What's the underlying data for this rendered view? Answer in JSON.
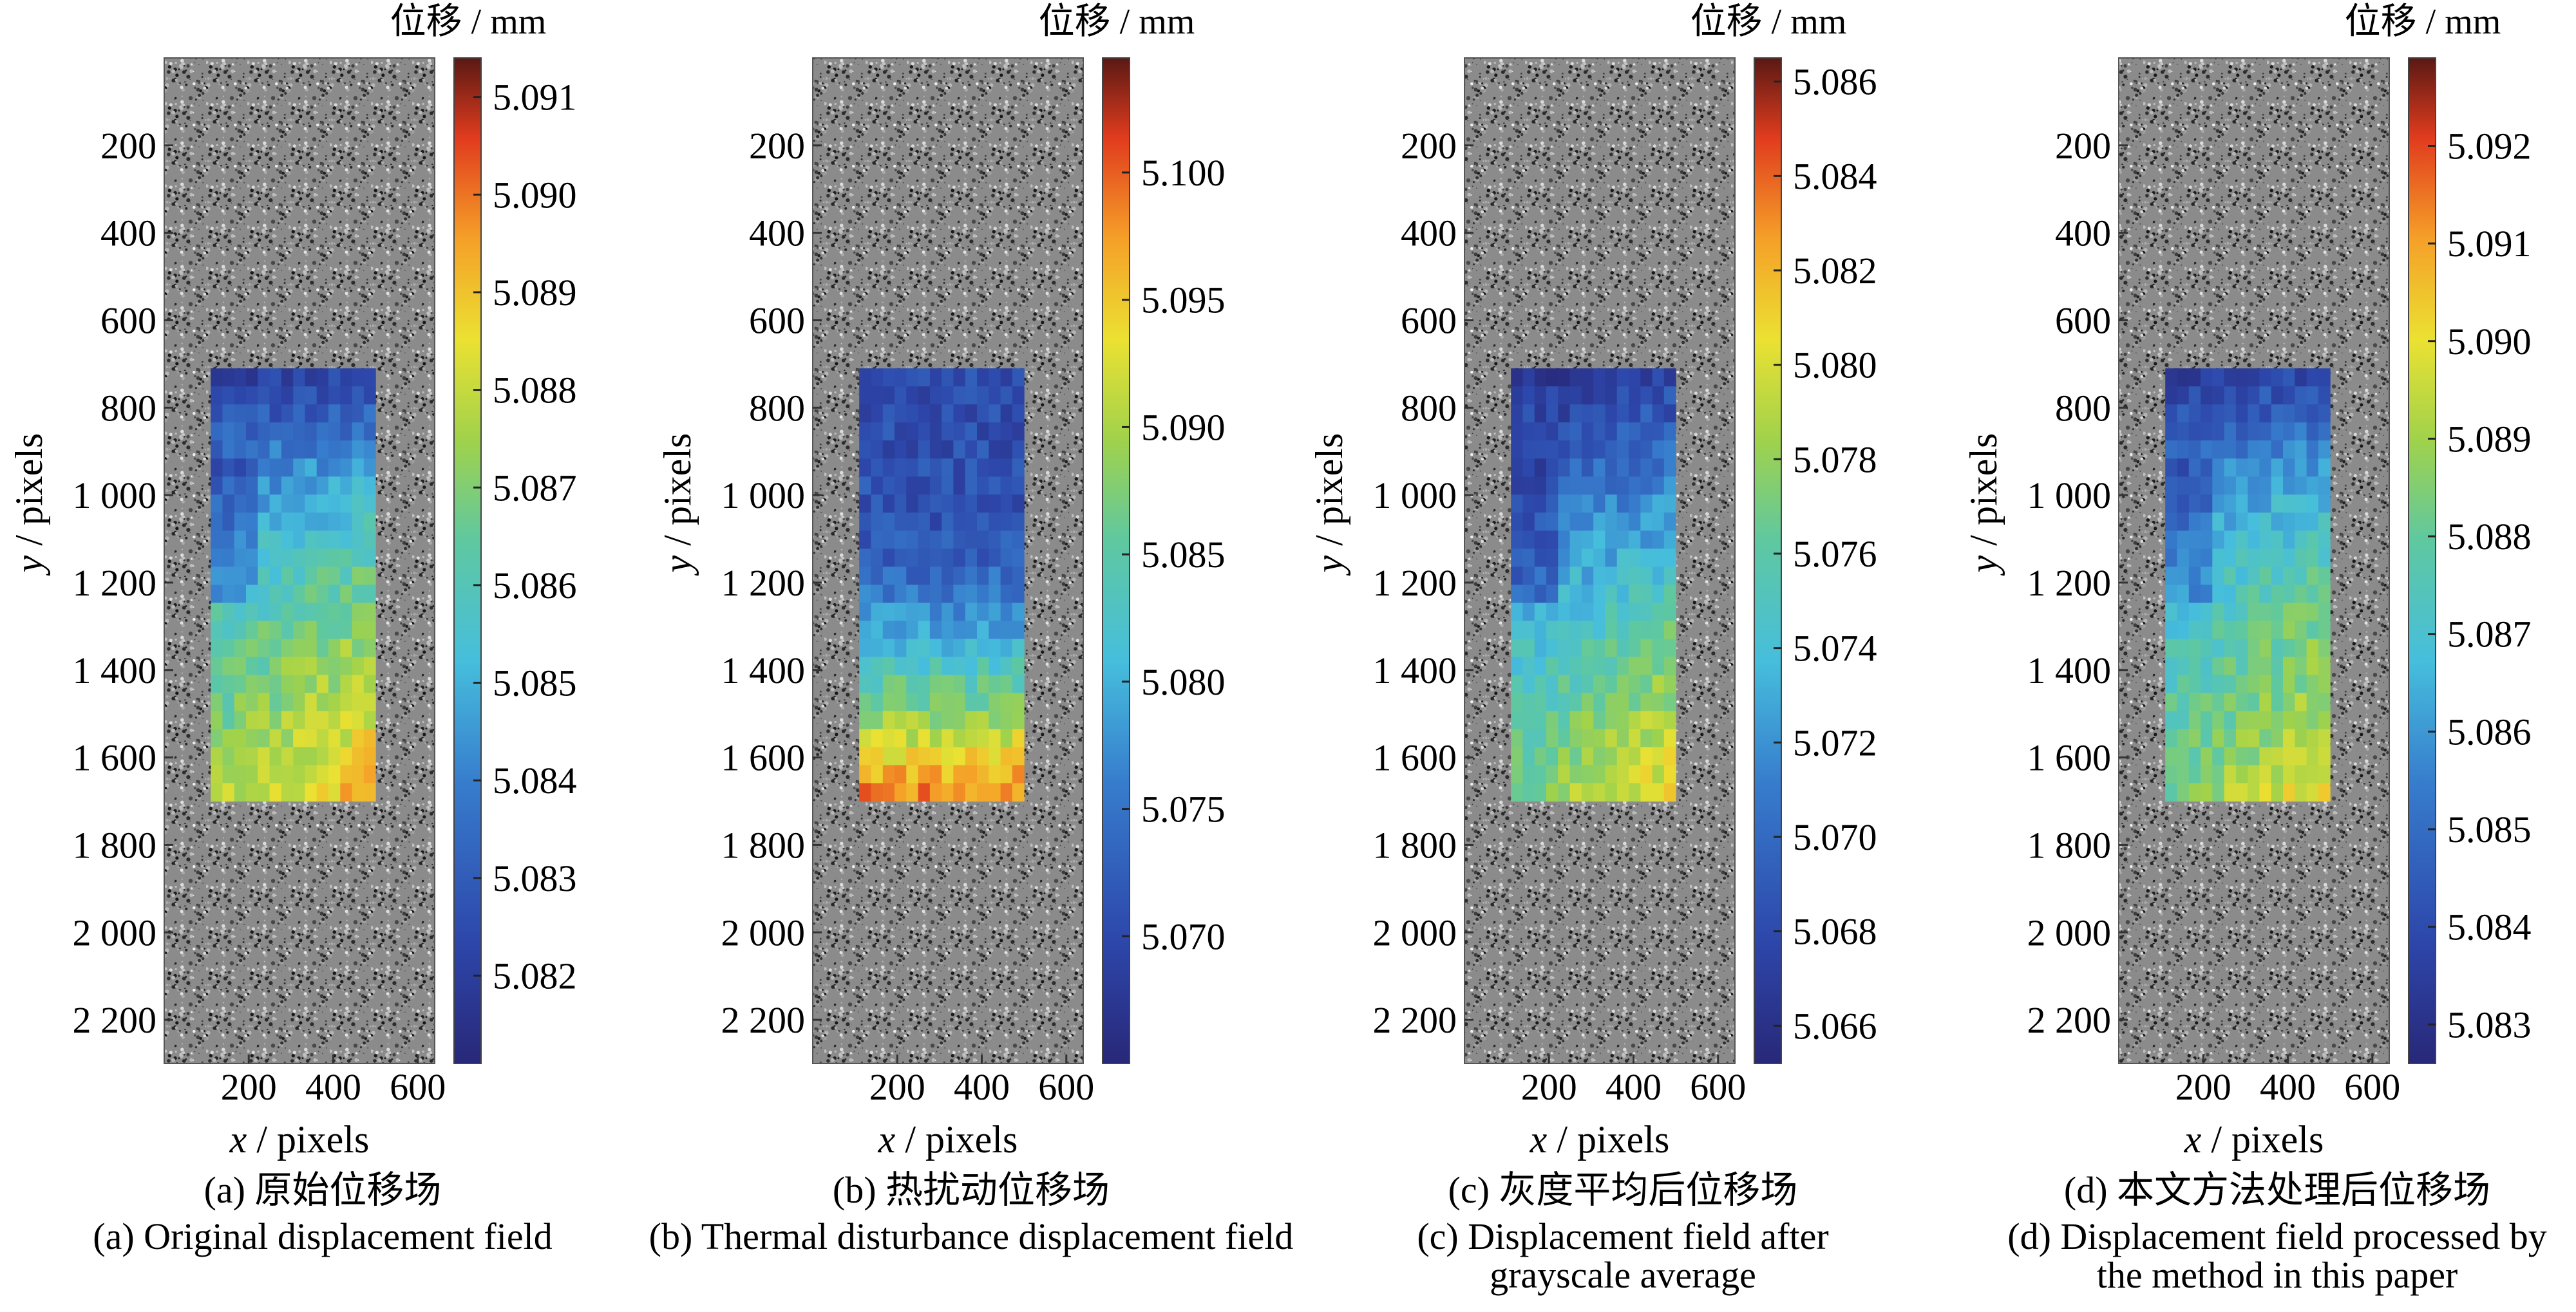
{
  "figure": {
    "panels": [
      {
        "unit": "位移 / mm",
        "caption_cn": "(a) 原始位移场",
        "caption_en": [
          "(a) Original displacement field"
        ]
      },
      {
        "unit": "位移 / mm",
        "caption_cn": "(b) 热扰动位移场",
        "caption_en": [
          "(b) Thermal disturbance displacement field"
        ]
      },
      {
        "unit": "位移 / mm",
        "caption_cn": "(c) 灰度平均后位移场",
        "caption_en": [
          "(c) Displacement field after",
          "grayscale average"
        ]
      },
      {
        "unit": "位移 / mm",
        "caption_cn": "(d) 本文方法处理后位移场",
        "caption_en": [
          "(d) Displacement field processed by",
          "the method in this paper"
        ]
      }
    ]
  },
  "chart_data": [
    {
      "type": "heatmap",
      "title": "(a) Original displacement field",
      "xlabel": "x / pixels",
      "ylabel": "y / pixels",
      "x_ticks": [
        "200",
        "400",
        "600"
      ],
      "y_ticks": [
        "200",
        "400",
        "600",
        "800",
        "1 000",
        "1 200",
        "1 400",
        "1 600",
        "1 800",
        "2 000",
        "2 200"
      ],
      "xlim": [
        0,
        640
      ],
      "ylim": [
        2300,
        0
      ],
      "colorbar_label": "位移 / mm",
      "colorbar_range": [
        5.0811,
        5.0914
      ],
      "colorbar_ticks": [
        "5.082",
        "5.083",
        "5.084",
        "5.085",
        "5.086",
        "5.087",
        "5.088",
        "5.089",
        "5.090",
        "5.091"
      ],
      "roi": {
        "x": [
          110,
          500
        ],
        "y": [
          710,
          1700
        ]
      },
      "value_rows": [
        5.0823,
        5.0832,
        5.0843,
        5.0851,
        5.0858,
        5.0864,
        5.0869,
        5.0873,
        5.0878,
        5.0884
      ],
      "pattern": "left-low",
      "seed": 11
    },
    {
      "type": "heatmap",
      "title": "(b) Thermal disturbance displacement field",
      "xlabel": "x / pixels",
      "ylabel": "y / pixels",
      "x_ticks": [
        "200",
        "400",
        "600"
      ],
      "y_ticks": [
        "200",
        "400",
        "600",
        "800",
        "1 000",
        "1 200",
        "1 400",
        "1 600",
        "1 800",
        "2 000",
        "2 200"
      ],
      "xlim": [
        0,
        640
      ],
      "ylim": [
        2300,
        0
      ],
      "colorbar_label": "位移 / mm",
      "colorbar_range": [
        5.065,
        5.1045
      ],
      "colorbar_ticks": [
        "5.070",
        "5.075",
        "5.080",
        "5.085",
        "5.090",
        "5.095",
        "5.100"
      ],
      "roi": {
        "x": [
          110,
          500
        ],
        "y": [
          710,
          1700
        ]
      },
      "value_rows": [
        5.0705,
        5.0705,
        5.0708,
        5.0712,
        5.0728,
        5.0768,
        5.0818,
        5.0868,
        5.0928,
        5.0985
      ],
      "pattern": "vertical",
      "seed": 23
    },
    {
      "type": "heatmap",
      "title": "(c) Displacement field after grayscale average",
      "xlabel": "x / pixels",
      "ylabel": "y / pixels",
      "x_ticks": [
        "200",
        "400",
        "600"
      ],
      "y_ticks": [
        "200",
        "400",
        "600",
        "800",
        "1 000",
        "1 200",
        "1 400",
        "1 600",
        "1 800",
        "2 000",
        "2 200"
      ],
      "xlim": [
        0,
        640
      ],
      "ylim": [
        2300,
        0
      ],
      "colorbar_label": "位移 / mm",
      "colorbar_range": [
        5.0652,
        5.0865
      ],
      "colorbar_ticks": [
        "5.066",
        "5.068",
        "5.070",
        "5.072",
        "5.074",
        "5.076",
        "5.078",
        "5.080",
        "5.082",
        "5.084",
        "5.086"
      ],
      "roi": {
        "x": [
          110,
          500
        ],
        "y": [
          710,
          1700
        ]
      },
      "value_rows": [
        5.0672,
        5.0684,
        5.07,
        5.0716,
        5.0729,
        5.0743,
        5.0756,
        5.0768,
        5.0779,
        5.0788
      ],
      "pattern": "left-low",
      "seed": 37
    },
    {
      "type": "heatmap",
      "title": "(d) Displacement field processed by the method in this paper",
      "xlabel": "x / pixels",
      "ylabel": "y / pixels",
      "x_ticks": [
        "200",
        "400",
        "600"
      ],
      "y_ticks": [
        "200",
        "400",
        "600",
        "800",
        "1 000",
        "1 200",
        "1 400",
        "1 600",
        "1 800",
        "2 000",
        "2 200"
      ],
      "xlim": [
        0,
        640
      ],
      "ylim": [
        2300,
        0
      ],
      "colorbar_label": "位移 / mm",
      "colorbar_range": [
        5.0826,
        5.0929
      ],
      "colorbar_ticks": [
        "5.083",
        "5.084",
        "5.085",
        "5.086",
        "5.087",
        "5.088",
        "5.089",
        "5.090",
        "5.091",
        "5.092"
      ],
      "roi": {
        "x": [
          110,
          500
        ],
        "y": [
          710,
          1700
        ]
      },
      "value_rows": [
        5.0838,
        5.0847,
        5.0858,
        5.0865,
        5.0871,
        5.0876,
        5.088,
        5.0883,
        5.0887,
        5.0893
      ],
      "pattern": "left-low",
      "seed": 53
    }
  ]
}
